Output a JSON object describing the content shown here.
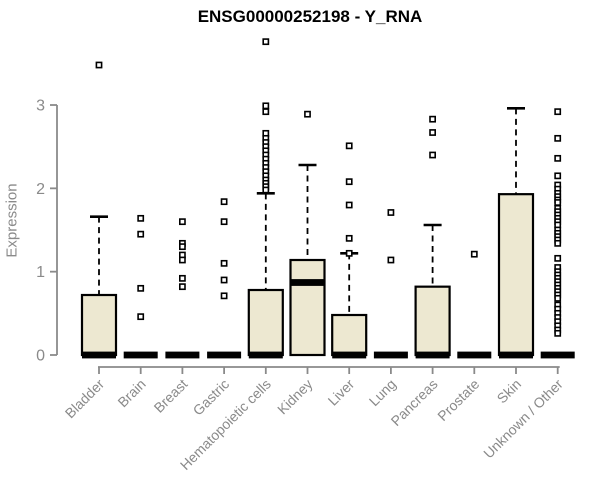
{
  "chart_data": {
    "type": "boxplot",
    "title": "ENSG00000252198 - Y_RNA",
    "ylabel": "Expression",
    "xlabel": "",
    "ylim": [
      0,
      3.9
    ],
    "yticks": [
      0,
      1,
      2,
      3
    ],
    "grid": false,
    "x_label_rotation": -45,
    "categories": [
      "Bladder",
      "Brain",
      "Breast",
      "Gastric",
      "Hematopoietic cells",
      "Kidney",
      "Liver",
      "Lung",
      "Pancreas",
      "Prostate",
      "Skin",
      "Unknown / Other"
    ],
    "series": [
      {
        "category": "Bladder",
        "q1": 0,
        "median": 0,
        "q3": 0.72,
        "whisker_low": 0,
        "whisker_high": 1.66,
        "outliers": [
          3.48
        ]
      },
      {
        "category": "Brain",
        "q1": 0,
        "median": 0,
        "q3": 0,
        "whisker_low": 0,
        "whisker_high": 0,
        "outliers": [
          1.64,
          1.45,
          0.8,
          0.46
        ]
      },
      {
        "category": "Breast",
        "q1": 0,
        "median": 0,
        "q3": 0,
        "whisker_low": 0,
        "whisker_high": 0,
        "outliers": [
          1.6,
          1.34,
          1.3,
          1.2,
          1.14,
          0.92,
          0.82
        ]
      },
      {
        "category": "Gastric",
        "q1": 0,
        "median": 0,
        "q3": 0,
        "whisker_low": 0,
        "whisker_high": 0,
        "outliers": [
          1.84,
          1.6,
          1.1,
          0.9,
          0.71
        ]
      },
      {
        "category": "Hematopoietic cells",
        "q1": 0,
        "median": 0,
        "q3": 0.78,
        "whisker_low": 0,
        "whisker_high": 1.94,
        "outliers": [
          3.76,
          2.99,
          2.92,
          2.66,
          2.6,
          2.55,
          2.5,
          2.45,
          2.4,
          2.35,
          2.3,
          2.25,
          2.2,
          2.15,
          2.1,
          2.06,
          2.02,
          1.98
        ]
      },
      {
        "category": "Kidney",
        "q1": 0,
        "median": 0.87,
        "q3": 1.14,
        "whisker_low": 0,
        "whisker_high": 2.28,
        "outliers": [
          2.89
        ]
      },
      {
        "category": "Liver",
        "q1": 0,
        "median": 0,
        "q3": 0.48,
        "whisker_low": 0,
        "whisker_high": 1.22,
        "outliers": [
          2.51,
          2.08,
          1.8,
          1.4,
          1.22
        ]
      },
      {
        "category": "Lung",
        "q1": 0,
        "median": 0,
        "q3": 0,
        "whisker_low": 0,
        "whisker_high": 0,
        "outliers": [
          1.71,
          1.14
        ]
      },
      {
        "category": "Pancreas",
        "q1": 0,
        "median": 0,
        "q3": 0.82,
        "whisker_low": 0,
        "whisker_high": 1.56,
        "outliers": [
          2.83,
          2.67,
          2.4
        ]
      },
      {
        "category": "Prostate",
        "q1": 0,
        "median": 0,
        "q3": 0,
        "whisker_low": 0,
        "whisker_high": 0,
        "outliers": [
          1.21
        ]
      },
      {
        "category": "Skin",
        "q1": 0,
        "median": 0,
        "q3": 1.93,
        "whisker_low": 0,
        "whisker_high": 2.96,
        "outliers": []
      },
      {
        "category": "Unknown / Other",
        "q1": 0,
        "median": 0,
        "q3": 0,
        "whisker_low": 0,
        "whisker_high": 0,
        "outliers": [
          2.92,
          2.6,
          2.36,
          2.15,
          2.04,
          1.99,
          1.94,
          1.9,
          1.86,
          1.83,
          1.76,
          1.72,
          1.68,
          1.64,
          1.6,
          1.56,
          1.5,
          1.46,
          1.42,
          1.38,
          1.34,
          1.16,
          1.05,
          1.0,
          0.96,
          0.92,
          0.88,
          0.84,
          0.8,
          0.76,
          0.72,
          0.68,
          0.6,
          0.55,
          0.5,
          0.45,
          0.4,
          0.35,
          0.3,
          0.26
        ]
      }
    ],
    "colors": {
      "box_fill": "#EDE8D1",
      "box_stroke": "#000000",
      "median": "#000000",
      "whisker": "#000000",
      "outlier_stroke": "#000000",
      "outlier_fill": "#FFFFFF",
      "axis": "#8A8A8A",
      "tick_text": "#8A8A8A",
      "title_text": "#000000",
      "background": "#FFFFFF"
    }
  }
}
